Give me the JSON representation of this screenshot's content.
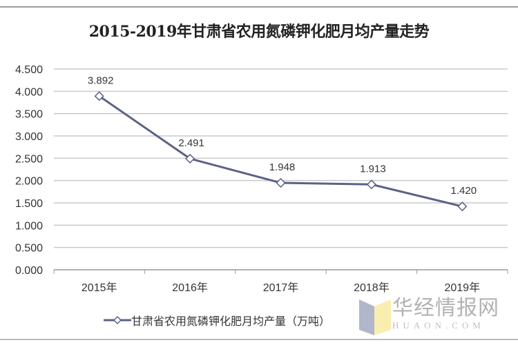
{
  "chart_data": {
    "type": "line",
    "title": "2015-2019年甘肃省农用氮磷钾化肥月均产量走势",
    "categories": [
      "2015年",
      "2016年",
      "2017年",
      "2018年",
      "2019年"
    ],
    "series": [
      {
        "name": "甘肃省农用氮磷钾化肥月均产量（万吨）",
        "values": [
          3.892,
          2.491,
          1.948,
          1.913,
          1.42
        ],
        "labels": [
          "3.892",
          "2.491",
          "1.948",
          "1.913",
          "1.420"
        ],
        "color": "#5b6185"
      }
    ],
    "yticks": [
      "0.000",
      "0.500",
      "1.000",
      "1.500",
      "2.000",
      "2.500",
      "3.000",
      "3.500",
      "4.000",
      "4.500"
    ],
    "ylim": [
      0,
      4.5
    ],
    "grid": true,
    "legend": "bottom",
    "marker": "diamond-hollow"
  },
  "watermark": {
    "text": "华经情报网",
    "sub": "HUAON.COM"
  }
}
